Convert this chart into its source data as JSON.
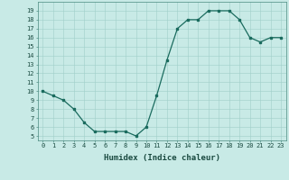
{
  "x": [
    0,
    1,
    2,
    3,
    4,
    5,
    6,
    7,
    8,
    9,
    10,
    11,
    12,
    13,
    14,
    15,
    16,
    17,
    18,
    19,
    20,
    21,
    22,
    23
  ],
  "y": [
    10,
    9.5,
    9.0,
    8.0,
    6.5,
    5.5,
    5.5,
    5.5,
    5.5,
    5.0,
    6.0,
    9.5,
    13.5,
    17.0,
    18.0,
    18.0,
    19.0,
    19.0,
    19.0,
    18.0,
    16.0,
    15.5,
    16.0,
    16.0
  ],
  "xlabel": "Humidex (Indice chaleur)",
  "line_color": "#1a6b5e",
  "bg_color": "#c8eae6",
  "grid_color": "#a0cfc9",
  "ylim_min": 4.5,
  "ylim_max": 20.0,
  "xlim_min": -0.5,
  "xlim_max": 23.5,
  "yticks": [
    5,
    6,
    7,
    8,
    9,
    10,
    11,
    12,
    13,
    14,
    15,
    16,
    17,
    18,
    19
  ],
  "xticks": [
    0,
    1,
    2,
    3,
    4,
    5,
    6,
    7,
    8,
    9,
    10,
    11,
    12,
    13,
    14,
    15,
    16,
    17,
    18,
    19,
    20,
    21,
    22,
    23
  ],
  "marker_size": 2.0,
  "line_width": 0.9,
  "tick_fontsize": 5.0,
  "xlabel_fontsize": 6.5
}
